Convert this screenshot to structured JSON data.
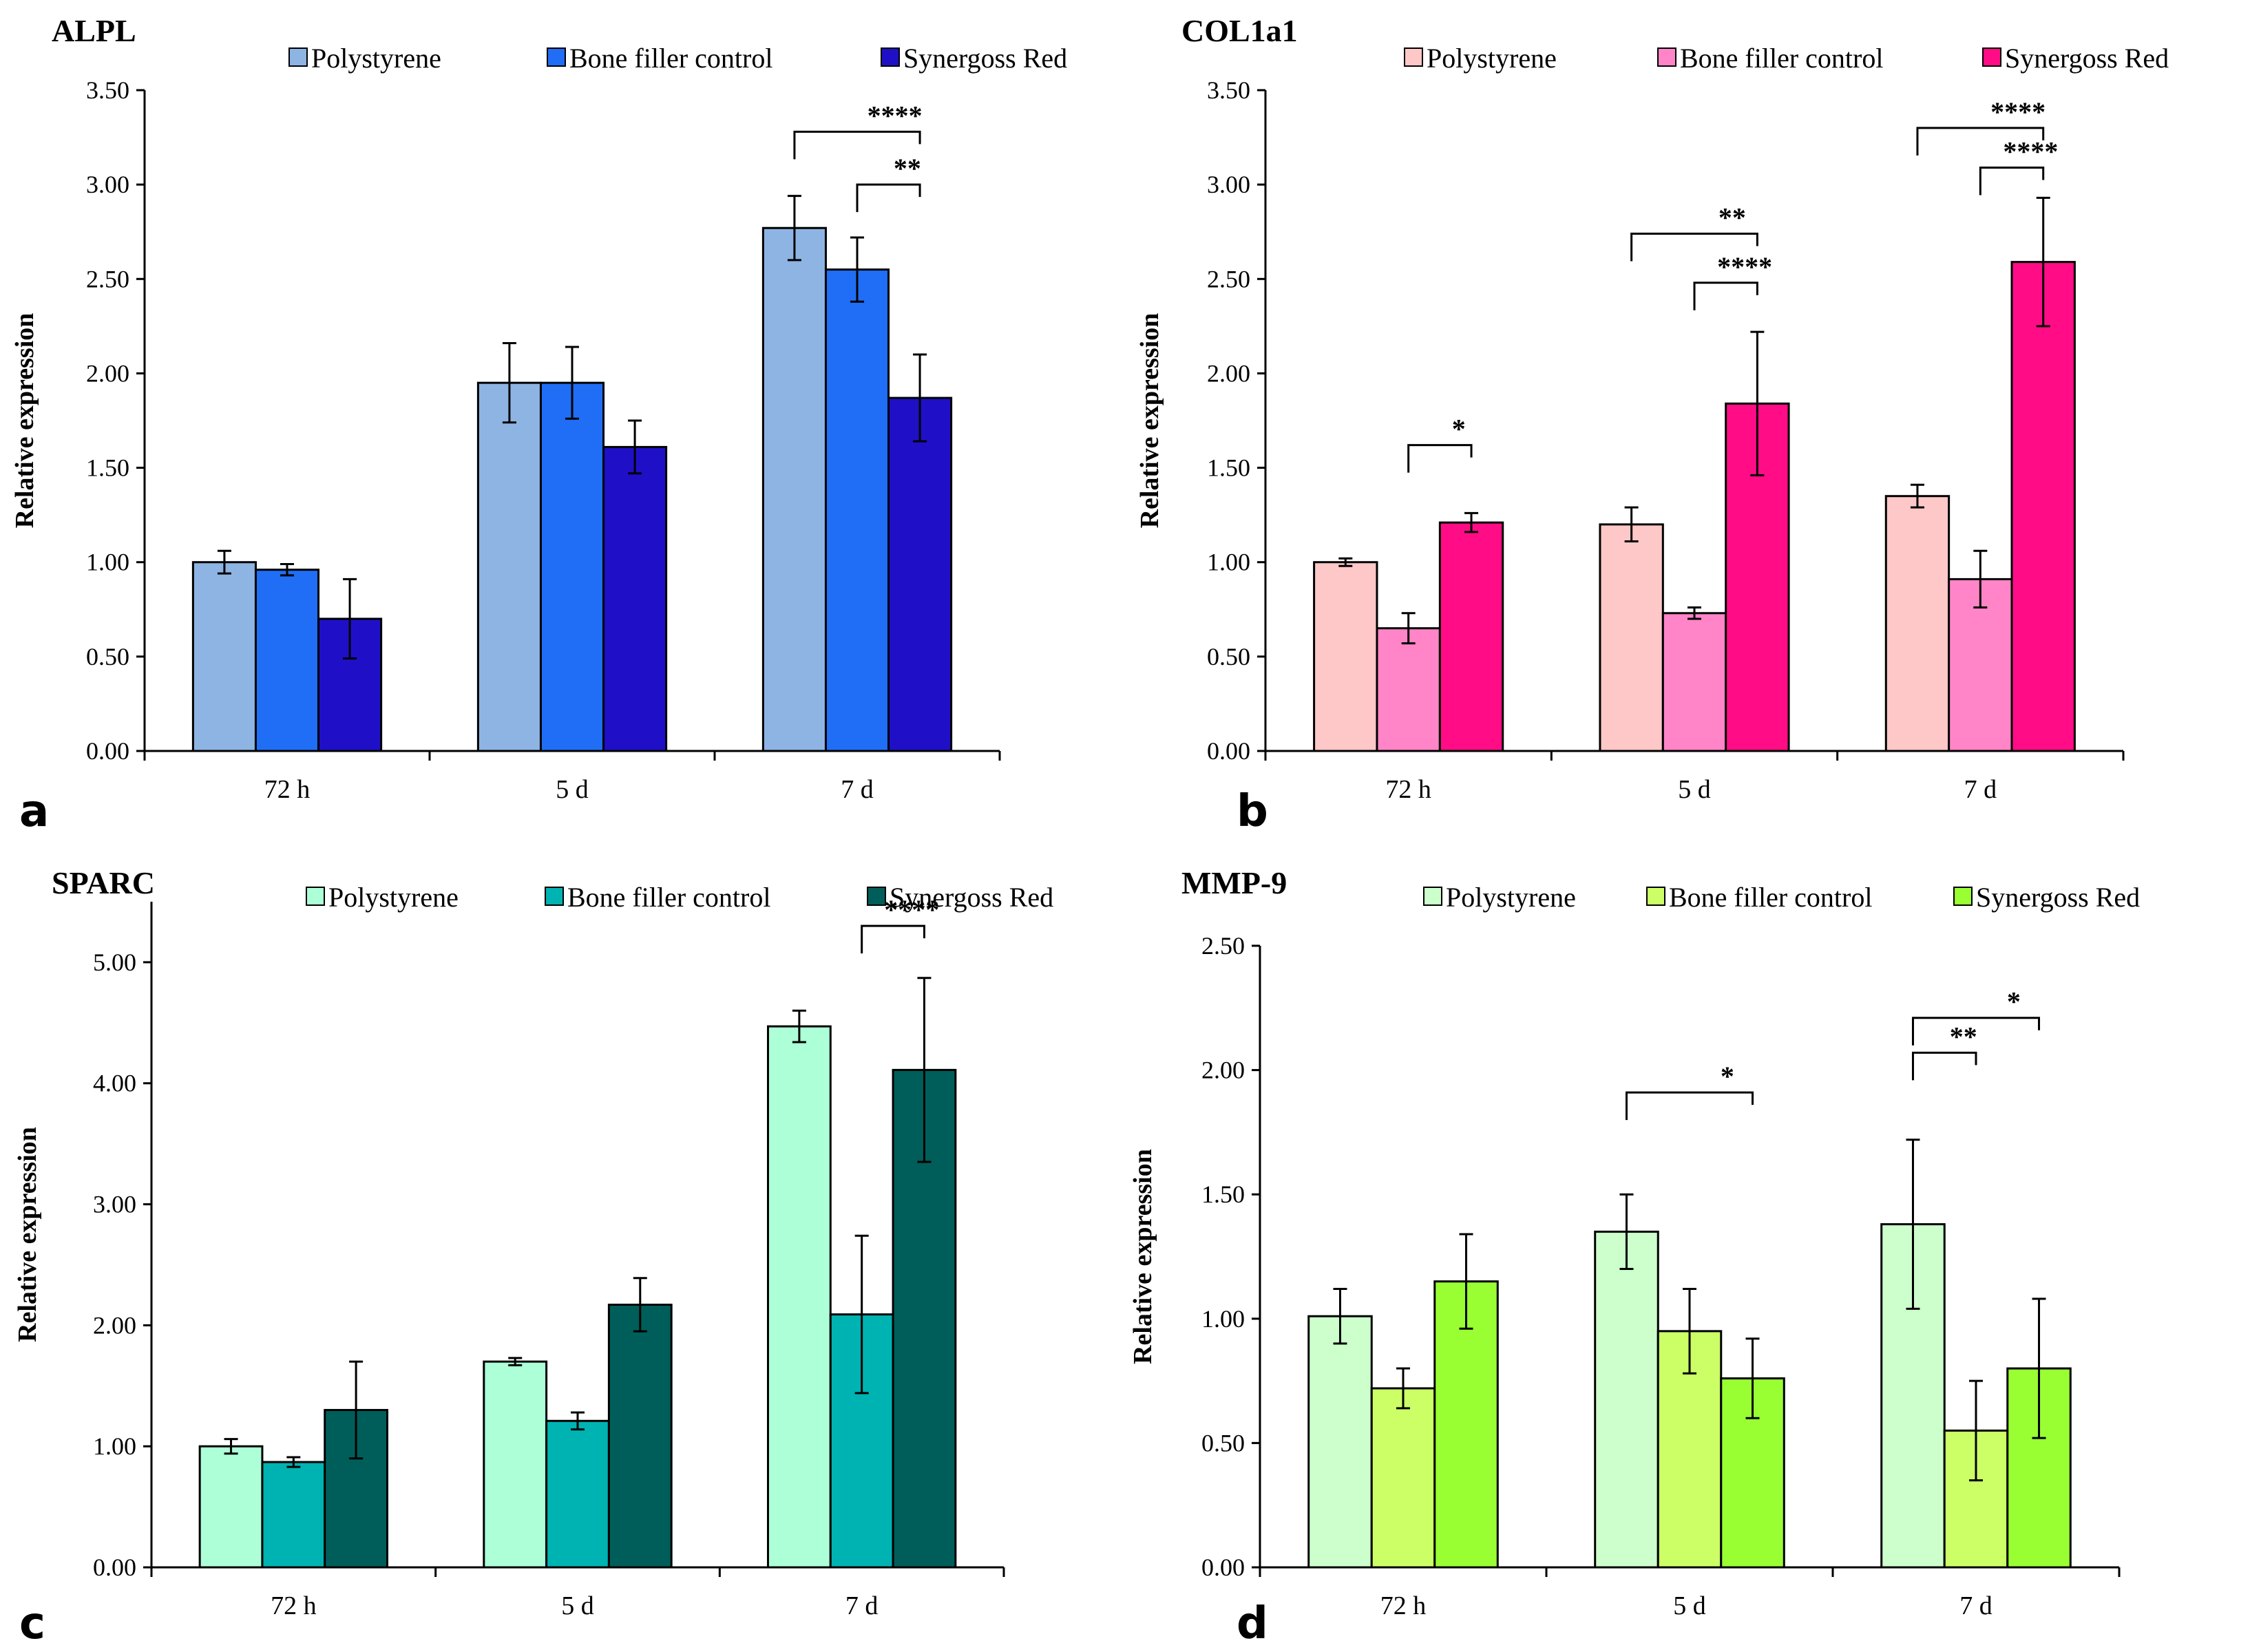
{
  "chart_data": [
    {
      "type": "bar",
      "panel": "a",
      "title": "ALPL",
      "ylabel": "Relative expression",
      "xlabel": "",
      "ylim": [
        0,
        3.5
      ],
      "yticks": [
        "0.00",
        "0.50",
        "1.00",
        "1.50",
        "2.00",
        "2.50",
        "3.00",
        "3.50"
      ],
      "categories": [
        "72 h",
        "5 d",
        "7 d"
      ],
      "series": [
        {
          "name": "Polystyrene",
          "color": "#8eb4e3",
          "values": [
            1.0,
            1.95,
            2.77
          ],
          "errors": [
            0.06,
            0.21,
            0.17
          ]
        },
        {
          "name": "Bone filler control",
          "color": "#1f6ef5",
          "values": [
            0.96,
            1.95,
            2.55
          ],
          "errors": [
            0.03,
            0.19,
            0.17
          ]
        },
        {
          "name": "Synergoss Red",
          "color": "#1f10c8",
          "values": [
            0.7,
            1.61,
            1.87
          ],
          "errors": [
            0.21,
            0.14,
            0.23
          ]
        }
      ],
      "significance": [
        {
          "category": "7 d",
          "from": "Polystyrene",
          "to": "Synergoss Red",
          "label": "****",
          "y": 3.28
        },
        {
          "category": "7 d",
          "from": "Bone filler control",
          "to": "Synergoss Red",
          "label": "**",
          "y": 3.0
        }
      ]
    },
    {
      "type": "bar",
      "panel": "b",
      "title": "COL1a1",
      "ylabel": "Relative expression",
      "xlabel": "",
      "ylim": [
        0,
        3.5
      ],
      "yticks": [
        "0.00",
        "0.50",
        "1.00",
        "1.50",
        "2.00",
        "2.50",
        "3.00",
        "3.50"
      ],
      "categories": [
        "72 h",
        "5 d",
        "7 d"
      ],
      "series": [
        {
          "name": "Polystyrene",
          "color": "#ffc8c8",
          "values": [
            1.0,
            1.2,
            1.35
          ],
          "errors": [
            0.02,
            0.09,
            0.06
          ]
        },
        {
          "name": "Bone filler control",
          "color": "#ff85c8",
          "values": [
            0.65,
            0.73,
            0.91
          ],
          "errors": [
            0.08,
            0.03,
            0.15
          ]
        },
        {
          "name": "Synergoss Red",
          "color": "#ff0c86",
          "values": [
            1.21,
            1.84,
            2.59
          ],
          "errors": [
            0.05,
            0.38,
            0.34
          ]
        }
      ],
      "significance": [
        {
          "category": "72 h",
          "from": "Bone filler control",
          "to": "Synergoss Red",
          "label": "*",
          "y": 1.62
        },
        {
          "category": "5 d",
          "from": "Polystyrene",
          "to": "Synergoss Red",
          "label": "**",
          "y": 2.74
        },
        {
          "category": "5 d",
          "from": "Bone filler control",
          "to": "Synergoss Red",
          "label": "****",
          "y": 2.48
        },
        {
          "category": "7 d",
          "from": "Polystyrene",
          "to": "Synergoss Red",
          "label": "****",
          "y": 3.3
        },
        {
          "category": "7 d",
          "from": "Bone filler control",
          "to": "Synergoss Red",
          "label": "****",
          "y": 3.09
        }
      ]
    },
    {
      "type": "bar",
      "panel": "c",
      "title": "SPARC",
      "ylabel": "Relative expression",
      "xlabel": "",
      "ylim": [
        0,
        5.5
      ],
      "yticks": [
        "0.00",
        "1.00",
        "2.00",
        "3.00",
        "4.00",
        "5.00"
      ],
      "categories": [
        "72 h",
        "5 d",
        "7 d"
      ],
      "series": [
        {
          "name": "Polystyrene",
          "color": "#adffd8",
          "values": [
            1.0,
            1.7,
            4.47
          ],
          "errors": [
            0.06,
            0.03,
            0.13
          ]
        },
        {
          "name": "Bone filler control",
          "color": "#00b3b3",
          "values": [
            0.87,
            1.21,
            2.09
          ],
          "errors": [
            0.04,
            0.07,
            0.65
          ]
        },
        {
          "name": "Synergoss Red",
          "color": "#005e5a",
          "values": [
            1.3,
            2.17,
            4.11
          ],
          "errors": [
            0.4,
            0.22,
            0.76
          ]
        }
      ],
      "significance": [
        {
          "category": "7 d",
          "from": "Bone filler control",
          "to": "Synergoss Red",
          "label": "****",
          "y": 5.3
        }
      ]
    },
    {
      "type": "bar",
      "panel": "d",
      "title": "MMP-9",
      "ylabel": "Relative expression",
      "xlabel": "",
      "ylim": [
        0,
        2.5
      ],
      "yticks": [
        "0.00",
        "0.50",
        "1.00",
        "1.50",
        "2.00",
        "2.50"
      ],
      "categories": [
        "72 h",
        "5 d",
        "7 d"
      ],
      "series": [
        {
          "name": "Polystyrene",
          "color": "#ccffcc",
          "values": [
            1.01,
            1.35,
            1.38
          ],
          "errors": [
            0.11,
            0.15,
            0.34
          ]
        },
        {
          "name": "Bone filler control",
          "color": "#ccff66",
          "values": [
            0.72,
            0.95,
            0.55
          ],
          "errors": [
            0.08,
            0.17,
            0.2
          ]
        },
        {
          "name": "Synergoss Red",
          "color": "#99ff33",
          "values": [
            1.15,
            0.76,
            0.8
          ],
          "errors": [
            0.19,
            0.16,
            0.28
          ]
        }
      ],
      "significance": [
        {
          "category": "5 d",
          "from": "Polystyrene",
          "to": "Synergoss Red",
          "label": "*",
          "y": 1.91
        },
        {
          "category": "7 d",
          "from": "Polystyrene",
          "to": "Bone filler control",
          "label": "**",
          "y": 2.07
        },
        {
          "category": "7 d",
          "from": "Polystyrene",
          "to": "Synergoss Red",
          "label": "*",
          "y": 2.21
        }
      ]
    }
  ]
}
